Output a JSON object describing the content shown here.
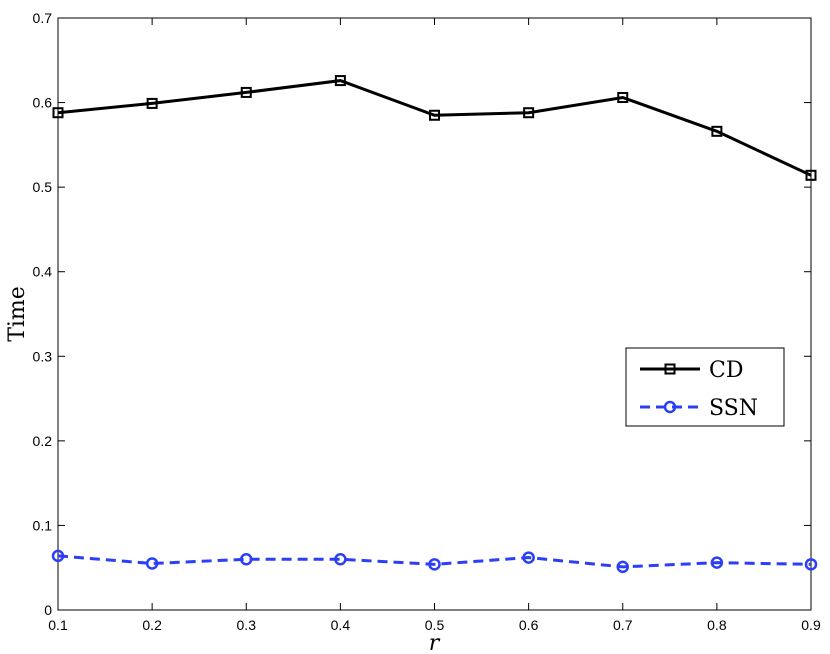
{
  "chart_data": {
    "type": "line",
    "xlabel": "r",
    "ylabel": "Time",
    "xlim": [
      0.1,
      0.9
    ],
    "ylim": [
      0,
      0.7
    ],
    "xticks": [
      "0.1",
      "0.2",
      "0.3",
      "0.4",
      "0.5",
      "0.6",
      "0.7",
      "0.8",
      "0.9"
    ],
    "yticks": [
      "0",
      "0.1",
      "0.2",
      "0.3",
      "0.4",
      "0.5",
      "0.6",
      "0.7"
    ],
    "x": [
      0.1,
      0.2,
      0.3,
      0.4,
      0.5,
      0.6,
      0.7,
      0.8,
      0.9
    ],
    "series": [
      {
        "name": "CD",
        "values": [
          0.588,
          0.599,
          0.612,
          0.626,
          0.585,
          0.588,
          0.606,
          0.566,
          0.514
        ],
        "color": "#000000",
        "marker": "square",
        "line_style": "solid"
      },
      {
        "name": "SSN",
        "values": [
          0.064,
          0.055,
          0.06,
          0.06,
          0.054,
          0.062,
          0.051,
          0.056,
          0.054
        ],
        "color": "#2b3ff5",
        "marker": "circle",
        "line_style": "dashed"
      }
    ],
    "grid": false,
    "legend_position": "right"
  }
}
